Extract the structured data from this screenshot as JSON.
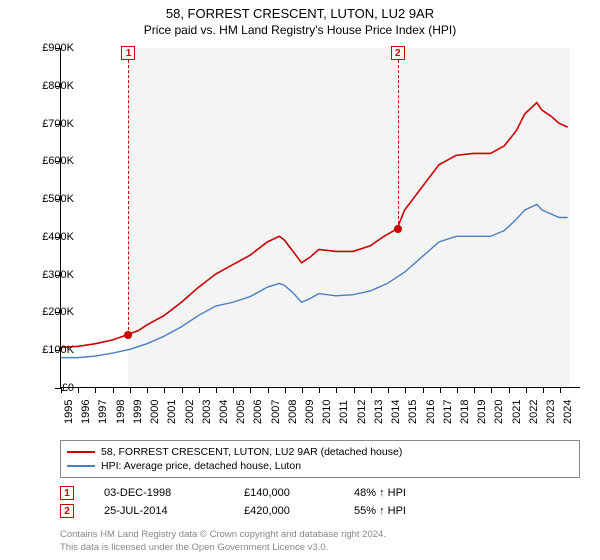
{
  "title": "58, FORREST CRESCENT, LUTON, LU2 9AR",
  "subtitle": "Price paid vs. HM Land Registry's House Price Index (HPI)",
  "chart": {
    "type": "line",
    "background_color": "#ffffff",
    "plot_background_color": "#f4f4f4",
    "plot_bg_start_year": 1998.92,
    "plot_bg_end_year": 2024.56,
    "x_axis": {
      "min": 1995,
      "max": 2025.2,
      "ticks": [
        1995,
        1996,
        1997,
        1998,
        1999,
        2000,
        2001,
        2002,
        2003,
        2004,
        2005,
        2006,
        2007,
        2008,
        2009,
        2010,
        2011,
        2012,
        2013,
        2014,
        2015,
        2016,
        2017,
        2018,
        2019,
        2020,
        2021,
        2022,
        2023,
        2024
      ],
      "label_fontsize": 11
    },
    "y_axis": {
      "min": 0,
      "max": 900000,
      "tick_step": 100000,
      "labels": [
        "£0",
        "£100K",
        "£200K",
        "£300K",
        "£400K",
        "£500K",
        "£600K",
        "£700K",
        "£800K",
        "£900K"
      ],
      "label_fontsize": 11
    },
    "series": [
      {
        "name": "price_paid",
        "label": "58, FORREST CRESCENT, LUTON, LU2 9AR (detached house)",
        "color": "#cc0000",
        "line_width": 1.6,
        "data": [
          [
            1995,
            105000
          ],
          [
            1996,
            108000
          ],
          [
            1997,
            115000
          ],
          [
            1998,
            125000
          ],
          [
            1998.92,
            140000
          ],
          [
            1999.5,
            150000
          ],
          [
            2000,
            165000
          ],
          [
            2001,
            190000
          ],
          [
            2002,
            225000
          ],
          [
            2003,
            265000
          ],
          [
            2004,
            300000
          ],
          [
            2005,
            325000
          ],
          [
            2006,
            350000
          ],
          [
            2007,
            385000
          ],
          [
            2007.7,
            400000
          ],
          [
            2008,
            390000
          ],
          [
            2008.5,
            360000
          ],
          [
            2009,
            330000
          ],
          [
            2009.5,
            345000
          ],
          [
            2010,
            365000
          ],
          [
            2011,
            360000
          ],
          [
            2012,
            360000
          ],
          [
            2013,
            375000
          ],
          [
            2013.8,
            400000
          ],
          [
            2014.56,
            420000
          ],
          [
            2015,
            470000
          ],
          [
            2016,
            530000
          ],
          [
            2017,
            590000
          ],
          [
            2018,
            615000
          ],
          [
            2019,
            620000
          ],
          [
            2020,
            620000
          ],
          [
            2020.8,
            640000
          ],
          [
            2021.5,
            680000
          ],
          [
            2022,
            725000
          ],
          [
            2022.7,
            755000
          ],
          [
            2023,
            735000
          ],
          [
            2023.5,
            720000
          ],
          [
            2024,
            700000
          ],
          [
            2024.5,
            690000
          ]
        ]
      },
      {
        "name": "hpi",
        "label": "HPI: Average price, detached house, Luton",
        "color": "#4a7fc1",
        "line_width": 1.4,
        "data": [
          [
            1995,
            78000
          ],
          [
            1996,
            78000
          ],
          [
            1997,
            82000
          ],
          [
            1998,
            90000
          ],
          [
            1999,
            100000
          ],
          [
            2000,
            115000
          ],
          [
            2001,
            135000
          ],
          [
            2002,
            160000
          ],
          [
            2003,
            190000
          ],
          [
            2004,
            215000
          ],
          [
            2005,
            225000
          ],
          [
            2006,
            240000
          ],
          [
            2007,
            265000
          ],
          [
            2007.7,
            275000
          ],
          [
            2008,
            270000
          ],
          [
            2008.5,
            250000
          ],
          [
            2009,
            225000
          ],
          [
            2009.5,
            235000
          ],
          [
            2010,
            248000
          ],
          [
            2011,
            242000
          ],
          [
            2012,
            245000
          ],
          [
            2013,
            255000
          ],
          [
            2014,
            275000
          ],
          [
            2015,
            305000
          ],
          [
            2016,
            345000
          ],
          [
            2017,
            385000
          ],
          [
            2018,
            400000
          ],
          [
            2019,
            400000
          ],
          [
            2020,
            400000
          ],
          [
            2020.8,
            415000
          ],
          [
            2021.5,
            445000
          ],
          [
            2022,
            470000
          ],
          [
            2022.7,
            485000
          ],
          [
            2023,
            470000
          ],
          [
            2023.5,
            460000
          ],
          [
            2024,
            450000
          ],
          [
            2024.5,
            450000
          ]
        ]
      }
    ],
    "sale_markers": [
      {
        "n": "1",
        "year": 1998.92,
        "price": 140000,
        "color": "#cc0000"
      },
      {
        "n": "2",
        "year": 2014.56,
        "price": 420000,
        "color": "#cc0000"
      }
    ]
  },
  "legend": {
    "items": [
      {
        "color": "#cc0000",
        "label": "58, FORREST CRESCENT, LUTON, LU2 9AR (detached house)"
      },
      {
        "color": "#4a7fc1",
        "label": "HPI: Average price, detached house, Luton"
      }
    ]
  },
  "sales": [
    {
      "n": "1",
      "date": "03-DEC-1998",
      "price": "£140,000",
      "diff": "48% ↑ HPI"
    },
    {
      "n": "2",
      "date": "25-JUL-2014",
      "price": "£420,000",
      "diff": "55% ↑ HPI"
    }
  ],
  "footer": {
    "line1": "Contains HM Land Registry data © Crown copyright and database right 2024.",
    "line2": "This data is licensed under the Open Government Licence v3.0."
  }
}
